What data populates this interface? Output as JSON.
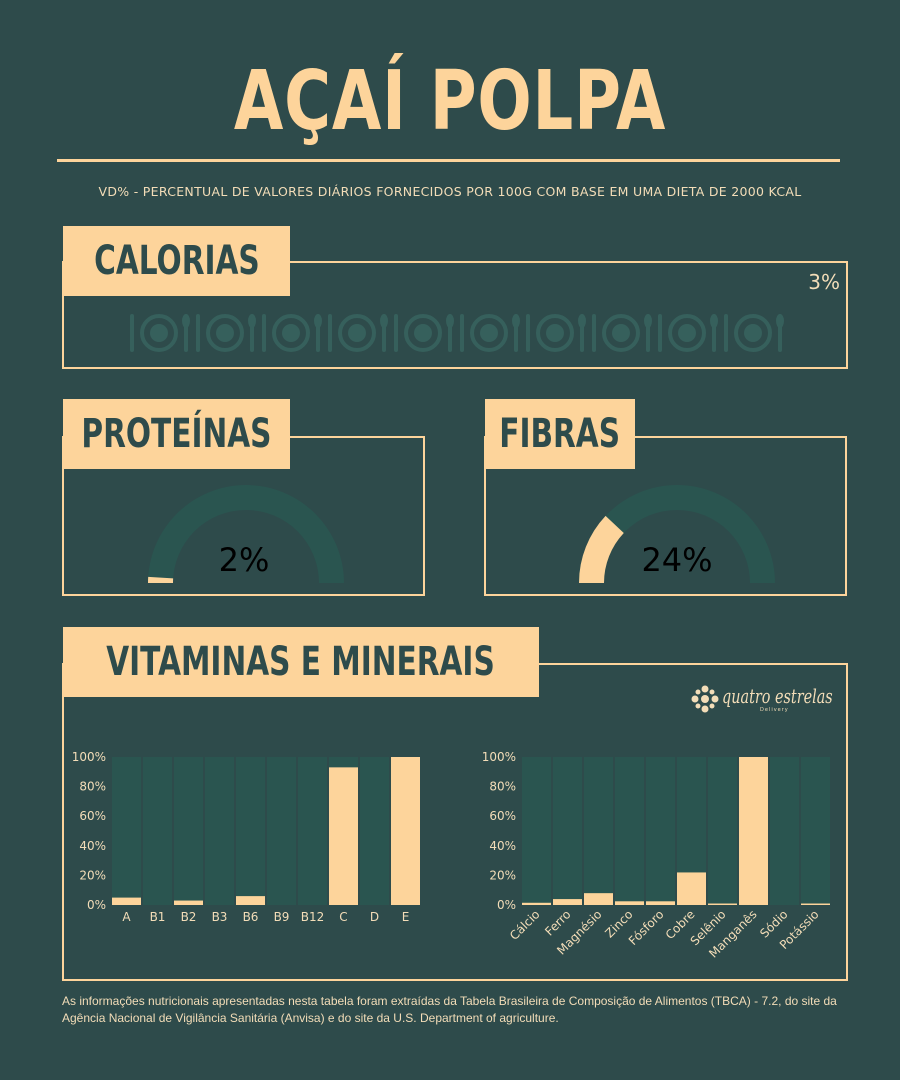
{
  "title": "AÇAÍ POLPA",
  "subtitle": "VD% - PERCENTUAL DE VALORES DIÁRIOS FORNECIDOS POR 100G COM BASE EM UMA DIETA DE 2000 KCAL",
  "calorias": {
    "label": "CALORIAS",
    "value_text": "3%",
    "value": 3,
    "icon": "plate-and-cutlery-icon"
  },
  "proteinas": {
    "label": "PROTEÍNAS",
    "value_text": "2%",
    "value": 2
  },
  "fibras": {
    "label": "FIBRAS",
    "value_text": "24%",
    "value": 24
  },
  "vitaminas": {
    "label": "VITAMINAS E MINERAIS"
  },
  "logo": {
    "name": "quatro estrelas",
    "sub": "Delivery",
    "icon": "ornament-icon"
  },
  "colors": {
    "background": "#2e4b4b",
    "accent": "#fdd49b",
    "bar_track": "#2a5550"
  },
  "chart_data": [
    {
      "type": "bar",
      "categories": [
        "A",
        "B1",
        "B2",
        "B3",
        "B6",
        "B9",
        "B12",
        "C",
        "D",
        "E"
      ],
      "values": [
        5,
        0,
        3,
        0,
        6,
        0,
        0,
        93,
        0,
        100
      ],
      "ylim": [
        0,
        100
      ],
      "yticks": [
        "0%",
        "20%",
        "40%",
        "60%",
        "80%",
        "100%"
      ],
      "grid": false
    },
    {
      "type": "bar",
      "categories": [
        "Cálcio",
        "Ferro",
        "Magnésio",
        "Zinco",
        "Fósforo",
        "Cobre",
        "Selênio",
        "Manganês",
        "Sódio",
        "Potássio"
      ],
      "values": [
        1.5,
        4,
        8,
        2.5,
        2.5,
        22,
        1,
        100,
        0,
        1
      ],
      "ylim": [
        0,
        100
      ],
      "yticks": [
        "0%",
        "20%",
        "40%",
        "60%",
        "80%",
        "100%"
      ],
      "grid": false
    }
  ],
  "footer": "As informações nutricionais apresentadas nesta tabela foram extraídas da Tabela Brasileira de Composição de Alimentos (TBCA) - 7.2, do site da Agência Nacional de Vigilância Sanitária (Anvisa) e do site da U.S. Department of agriculture."
}
